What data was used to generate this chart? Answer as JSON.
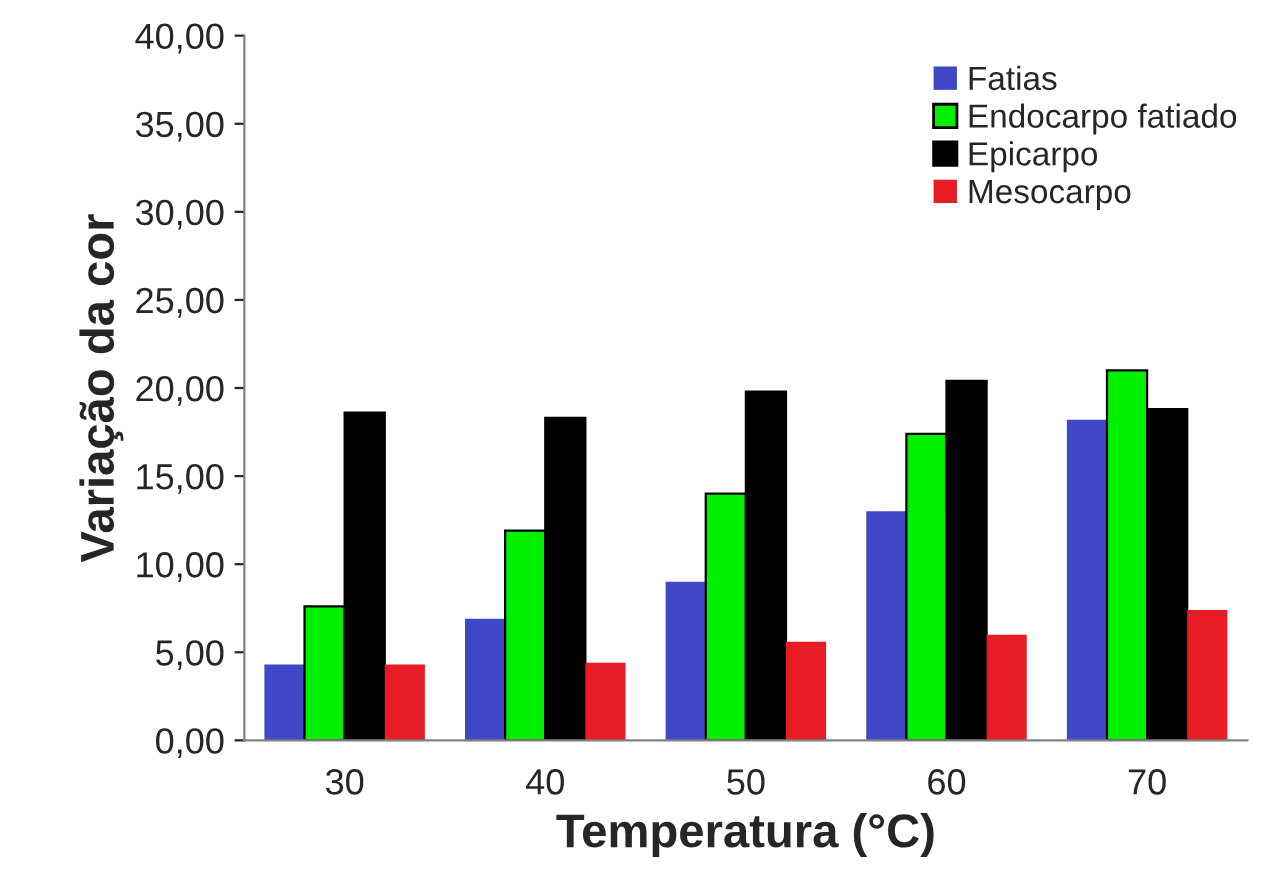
{
  "chart_data": {
    "type": "bar",
    "xlabel": "Temperatura (°C)",
    "ylabel": "Variação da cor",
    "categories": [
      "30",
      "40",
      "50",
      "60",
      "70"
    ],
    "series": [
      {
        "name": "Fatias",
        "color": "#4048c8",
        "values": [
          4.3,
          6.9,
          9.0,
          13.0,
          18.2
        ]
      },
      {
        "name": "Endocarpo fatiado",
        "color": "#00f000",
        "values": [
          7.6,
          11.9,
          14.0,
          17.4,
          21.0
        ]
      },
      {
        "name": "Epicarpo",
        "color": "#000000",
        "values": [
          18.6,
          18.3,
          19.8,
          20.4,
          18.8
        ]
      },
      {
        "name": "Mesocarpo",
        "color": "#e81c24",
        "values": [
          4.3,
          4.4,
          5.6,
          6.0,
          7.4
        ]
      }
    ],
    "ylim": [
      0,
      40
    ],
    "yticks": [
      {
        "value": 0,
        "label": "0,00"
      },
      {
        "value": 5,
        "label": "5,00"
      },
      {
        "value": 10,
        "label": "10,00"
      },
      {
        "value": 15,
        "label": "15,00"
      },
      {
        "value": 20,
        "label": "20,00"
      },
      {
        "value": 25,
        "label": "25,00"
      },
      {
        "value": 30,
        "label": "30,00"
      },
      {
        "value": 35,
        "label": "35,00"
      },
      {
        "value": 40,
        "label": "40,00"
      }
    ],
    "grid": false,
    "legend": "top right"
  }
}
